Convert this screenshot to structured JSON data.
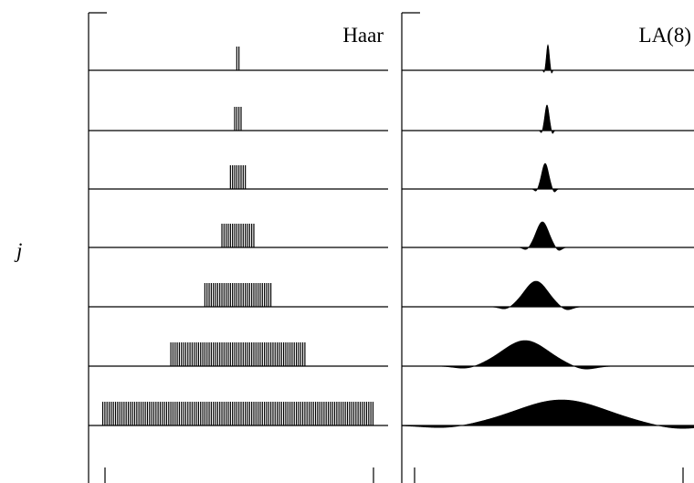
{
  "axis_label": "j",
  "panels": [
    {
      "label": "Haar"
    },
    {
      "label": "LA(8)"
    }
  ]
}
